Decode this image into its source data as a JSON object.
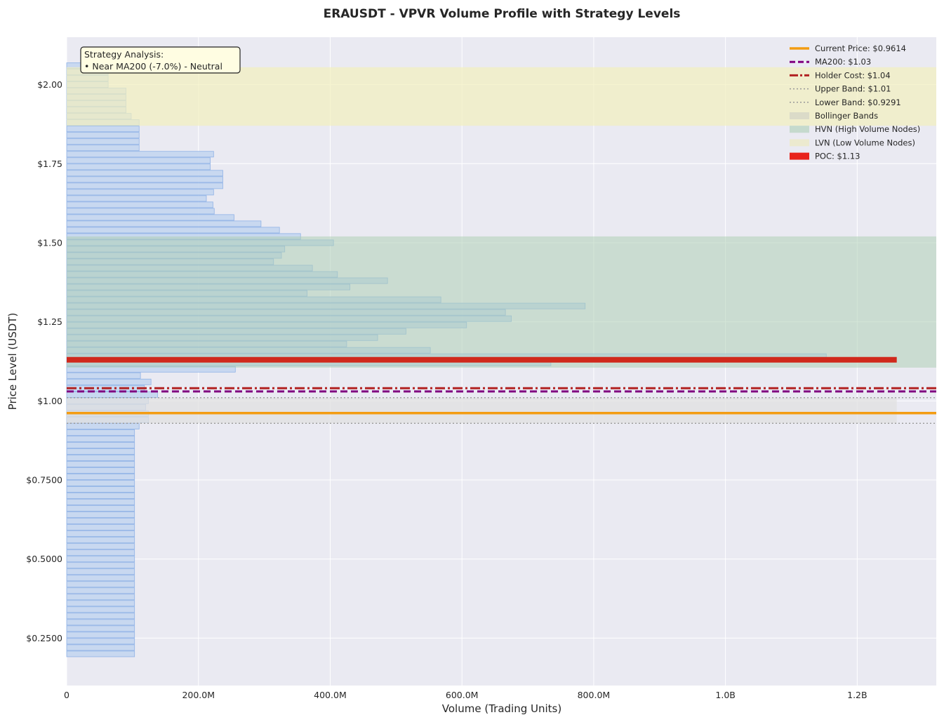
{
  "chart_data": {
    "type": "bar",
    "orientation": "horizontal",
    "title": "ERAUSDT - VPVR Volume Profile with Strategy Levels",
    "xlabel": "Volume (Trading Units)",
    "ylabel": "Price Level (USDT)",
    "xlim": [
      0,
      1320000000
    ],
    "ylim": [
      0.1,
      2.15
    ],
    "x_ticks": [
      {
        "value": 0,
        "label": "0"
      },
      {
        "value": 200000000,
        "label": "200.0M"
      },
      {
        "value": 400000000,
        "label": "400.0M"
      },
      {
        "value": 600000000,
        "label": "600.0M"
      },
      {
        "value": 800000000,
        "label": "800.0M"
      },
      {
        "value": 1000000000,
        "label": "1.0B"
      },
      {
        "value": 1200000000,
        "label": "1.2B"
      }
    ],
    "y_ticks": [
      {
        "value": 0.25,
        "label": "$0.2500"
      },
      {
        "value": 0.5,
        "label": "$0.5000"
      },
      {
        "value": 0.75,
        "label": "$0.7500"
      },
      {
        "value": 1.0,
        "label": "$1.00"
      },
      {
        "value": 1.25,
        "label": "$1.25"
      },
      {
        "value": 1.5,
        "label": "$1.50"
      },
      {
        "value": 1.75,
        "label": "$1.75"
      },
      {
        "value": 2.0,
        "label": "$2.00"
      }
    ],
    "grid": true,
    "legend_position": "top-right",
    "bins": {
      "prices": [
        0.2,
        0.22,
        0.24,
        0.26,
        0.28,
        0.3,
        0.32,
        0.34,
        0.36,
        0.38,
        0.4,
        0.42,
        0.44,
        0.46,
        0.48,
        0.5,
        0.52,
        0.54,
        0.56,
        0.58,
        0.6,
        0.62,
        0.64,
        0.66,
        0.68,
        0.7,
        0.72,
        0.74,
        0.76,
        0.78,
        0.8,
        0.82,
        0.84,
        0.86,
        0.88,
        0.9,
        0.92,
        0.94,
        0.96,
        0.98,
        1.0,
        1.02,
        1.04,
        1.06,
        1.08,
        1.1,
        1.12,
        1.14,
        1.16,
        1.18,
        1.2,
        1.22,
        1.24,
        1.26,
        1.28,
        1.3,
        1.32,
        1.34,
        1.36,
        1.38,
        1.4,
        1.42,
        1.44,
        1.46,
        1.48,
        1.5,
        1.52,
        1.54,
        1.56,
        1.58,
        1.6,
        1.62,
        1.64,
        1.66,
        1.68,
        1.7,
        1.72,
        1.74,
        1.76,
        1.78,
        1.8,
        1.82,
        1.84,
        1.86,
        1.88,
        1.9,
        1.92,
        1.94,
        1.96,
        1.98,
        2.0,
        2.02,
        2.04,
        2.06
      ],
      "volumes": [
        103000000,
        103000000,
        103000000,
        103000000,
        103000000,
        103000000,
        103000000,
        103000000,
        103000000,
        103000000,
        103000000,
        103000000,
        103000000,
        103000000,
        103000000,
        103000000,
        103000000,
        103000000,
        103000000,
        103000000,
        103000000,
        103000000,
        103000000,
        103000000,
        103000000,
        103000000,
        103000000,
        103000000,
        103000000,
        103000000,
        103000000,
        103000000,
        103000000,
        103000000,
        103000000,
        103000000,
        110000000,
        124000000,
        124000000,
        120000000,
        124000000,
        138000000,
        118000000,
        128000000,
        112000000,
        256000000,
        735000000,
        1153000000,
        552000000,
        425000000,
        472000000,
        515000000,
        607000000,
        675000000,
        666000000,
        787000000,
        568000000,
        365000000,
        430000000,
        487000000,
        411000000,
        373000000,
        314000000,
        326000000,
        331000000,
        405000000,
        355000000,
        323000000,
        295000000,
        254000000,
        224000000,
        222000000,
        212000000,
        223000000,
        237000000,
        237000000,
        237000000,
        218000000,
        218000000,
        223000000,
        110000000,
        110000000,
        110000000,
        110000000,
        110000000,
        98000000,
        90000000,
        90000000,
        90000000,
        90000000,
        63000000,
        63000000,
        63000000,
        63000000
      ],
      "bin_height": 0.018
    },
    "levels": {
      "current_price": 0.9614,
      "ma200": 1.03,
      "holder_cost": 1.04,
      "upper_band": 1.01,
      "lower_band": 0.9291,
      "poc": 1.13
    },
    "zones": {
      "hvn": [
        1.105,
        1.52
      ],
      "lvn": [
        1.87,
        2.055
      ],
      "bollinger": [
        0.9291,
        1.01
      ]
    },
    "legend": [
      {
        "label": "Current Price: $0.9614",
        "style": "solid",
        "color": "#f39c12"
      },
      {
        "label": "MA200: $1.03",
        "style": "dashed",
        "color": "#800080"
      },
      {
        "label": "Holder Cost: $1.04",
        "style": "dashdot",
        "color": "#b22222"
      },
      {
        "label": "Upper Band: $1.01",
        "style": "dotted",
        "color": "#999999"
      },
      {
        "label": "Lower Band: $0.9291",
        "style": "dotted",
        "color": "#999999"
      },
      {
        "label": "Bollinger Bands",
        "style": "patch",
        "color": "#d8d8c8"
      },
      {
        "label": "HVN (High Volume Nodes)",
        "style": "patch",
        "color": "#c1d8c9"
      },
      {
        "label": "LVN (Low Volume Nodes)",
        "style": "patch",
        "color": "#eceacb"
      },
      {
        "label": "POC: $1.13",
        "style": "patch-strong",
        "color": "#e8231c"
      }
    ],
    "annotation": {
      "title": "Strategy Analysis:",
      "line": "• Near MA200 (-7.0%) - Neutral"
    },
    "colors": {
      "bar_fill": "#c6d7ef",
      "bar_edge": "#8fb2e6",
      "hvn": "#aed0b6",
      "lvn": "#f2f0bd",
      "bollinger": "#e0e0e0",
      "poc": "#d0291c",
      "plot_bg": "#eaeaf2"
    }
  }
}
